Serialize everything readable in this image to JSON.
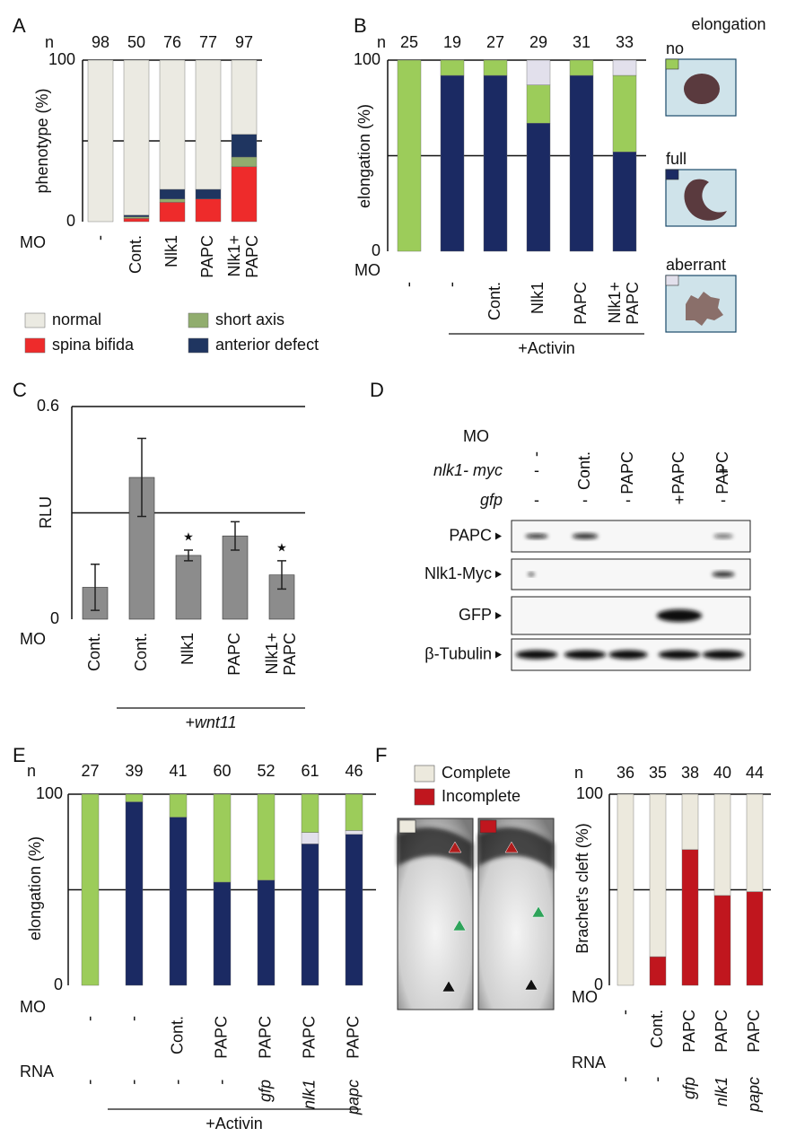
{
  "chart_data": [
    {
      "type": "stacked_bar",
      "panel": "A",
      "n_label": "n",
      "n": [
        98,
        50,
        76,
        77,
        97
      ],
      "row_label": "MO",
      "categories": [
        "-",
        "Cont.",
        "Nlk1",
        "PAPC",
        "Nlk1+\nPAPC"
      ],
      "ylabel": "phenotype (%)",
      "ylim": [
        0,
        100
      ],
      "yticks": [
        0,
        100
      ],
      "ref_lines": [
        50,
        100
      ],
      "series": [
        {
          "name": "spina bifida",
          "color": "#ee2b2b",
          "values": [
            0,
            2,
            12,
            14,
            34
          ]
        },
        {
          "name": "short axis",
          "color": "#91ad6e",
          "values": [
            0,
            1,
            2,
            0,
            6
          ]
        },
        {
          "name": "anterior defect",
          "color": "#1f3560",
          "values": [
            0,
            1,
            6,
            6,
            14
          ]
        },
        {
          "name": "normal",
          "color": "#ebeae2",
          "values": [
            100,
            96,
            80,
            80,
            46
          ]
        }
      ]
    },
    {
      "type": "stacked_bar",
      "panel": "B",
      "n_label": "n",
      "n": [
        25,
        19,
        27,
        29,
        31,
        33
      ],
      "row_label": "MO",
      "categories": [
        "-",
        "-",
        "Cont.",
        "Nlk1",
        "PAPC",
        "Nlk1+\nPAPC"
      ],
      "group_label": "+Activin",
      "ylabel": "elongation (%)",
      "ylim": [
        0,
        100
      ],
      "yticks": [
        0,
        100
      ],
      "ref_lines": [
        50,
        100
      ],
      "legend_title": "elongation",
      "series": [
        {
          "name": "full",
          "color": "#1b2a63",
          "values": [
            0,
            92,
            92,
            67,
            92,
            52
          ]
        },
        {
          "name": "no",
          "color": "#9ccc5a",
          "values": [
            100,
            8,
            8,
            20,
            8,
            40
          ]
        },
        {
          "name": "aberrant",
          "color": "#e2e0ec",
          "values": [
            0,
            0,
            0,
            13,
            0,
            8
          ]
        }
      ]
    },
    {
      "type": "bar",
      "panel": "C",
      "row_label": "MO",
      "categories": [
        "Cont.",
        "Cont.",
        "Nlk1",
        "PAPC",
        "Nlk1+\nPAPC"
      ],
      "group_label": "+wnt11",
      "ylabel": "RLU",
      "ylim": [
        0,
        0.6
      ],
      "yticks": [
        0,
        0.6
      ],
      "ref_lines": [
        0.3,
        0.6
      ],
      "color": "#8c8c8c",
      "values": [
        0.09,
        0.4,
        0.18,
        0.235,
        0.125
      ],
      "errors": [
        0.065,
        0.11,
        0.015,
        0.04,
        0.04
      ],
      "annotations": [
        {
          "text": "★",
          "index": 2
        },
        {
          "text": "★",
          "index": 4
        }
      ]
    },
    {
      "type": "stacked_bar",
      "panel": "E",
      "n_label": "n",
      "n": [
        27,
        39,
        41,
        60,
        52,
        61,
        46
      ],
      "row_label": "MO",
      "categories": [
        "-",
        "-",
        "Cont.",
        "PAPC",
        "PAPC",
        "PAPC",
        "PAPC"
      ],
      "row2_label": "RNA",
      "row2": [
        "-",
        "-",
        "-",
        "-",
        "gfp",
        "nlk1",
        "papc"
      ],
      "group_label": "+Activin",
      "ylabel": "elongation (%)",
      "ylim": [
        0,
        100
      ],
      "yticks": [
        0,
        100
      ],
      "ref_lines": [
        50,
        100
      ],
      "series": [
        {
          "color": "#1b2a63",
          "values": [
            0,
            96,
            88,
            54,
            55,
            74,
            79
          ]
        },
        {
          "color": "#e2e0ec",
          "values": [
            0,
            0,
            0,
            0,
            0,
            6,
            2
          ]
        },
        {
          "color": "#9ccc5a",
          "values": [
            100,
            4,
            12,
            46,
            45,
            20,
            19
          ]
        }
      ]
    },
    {
      "type": "stacked_bar",
      "panel": "F",
      "n_label": "n",
      "n": [
        36,
        35,
        38,
        40,
        44
      ],
      "row_label": "MO",
      "categories": [
        "-",
        "Cont.",
        "PAPC",
        "PAPC",
        "PAPC"
      ],
      "row2_label": "RNA",
      "row2": [
        "-",
        "-",
        "gfp",
        "nlk1",
        "papc"
      ],
      "ylabel": "Brachet's cleft (%)",
      "ylim": [
        0,
        100
      ],
      "yticks": [
        0,
        100
      ],
      "ref_lines": [
        50,
        100
      ],
      "series": [
        {
          "name": "Incomplete",
          "color": "#c0161e",
          "values": [
            0,
            15,
            71,
            47,
            49
          ]
        },
        {
          "name": "Complete",
          "color": "#ece9dd",
          "values": [
            100,
            85,
            29,
            53,
            51
          ]
        }
      ]
    }
  ],
  "blot": {
    "panel": "D",
    "rows": [
      {
        "label": "MO",
        "values": [
          "-",
          "Cont.",
          "PAPC",
          "PAPC",
          "PAPC"
        ]
      },
      {
        "label": "nlk1- myc",
        "values": [
          "-",
          "-",
          "-",
          "-",
          "+"
        ]
      },
      {
        "label": "gfp",
        "values": [
          "-",
          "-",
          "-",
          "+",
          "-"
        ]
      }
    ],
    "bands": [
      "PAPC",
      "Nlk1-Myc",
      "GFP",
      "β-Tubulin"
    ]
  }
}
